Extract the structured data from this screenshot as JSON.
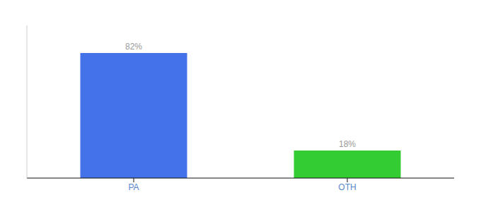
{
  "chart_data": {
    "type": "bar",
    "categories": [
      "PA",
      "OTH"
    ],
    "values": [
      82,
      18
    ],
    "value_labels": [
      "82%",
      "18%"
    ],
    "colors": [
      "#4472e8",
      "#33cc33"
    ],
    "ylim": [
      0,
      100
    ],
    "data_labels": true,
    "tick_labels": "x"
  }
}
